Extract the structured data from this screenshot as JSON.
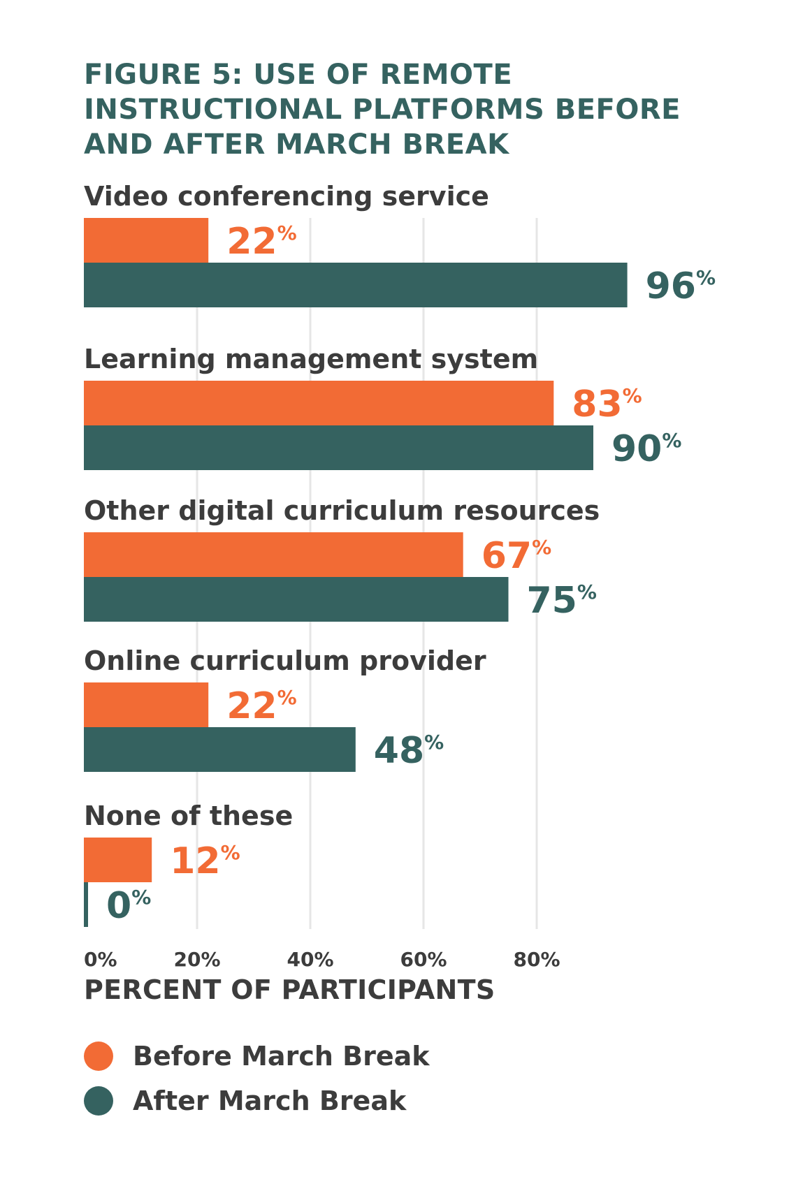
{
  "title_lines": [
    "FIGURE 5: USE OF REMOTE",
    "INSTRUCTIONAL PLATFORMS BEFORE",
    "AND AFTER MARCH BREAK"
  ],
  "colors": {
    "before": "#F26B35",
    "after": "#356260",
    "grid": "#e6e6e6",
    "text": "#3c3c3c",
    "title": "#356260"
  },
  "chart_data": {
    "type": "bar",
    "orientation": "horizontal",
    "categories": [
      "Video conferencing service",
      "Learning management system",
      "Other digital curriculum resources",
      "Online curriculum provider",
      "None of these"
    ],
    "series": [
      {
        "name": "Before March Break",
        "values": [
          22,
          83,
          67,
          22,
          12
        ]
      },
      {
        "name": "After March Break",
        "values": [
          96,
          90,
          75,
          48,
          0
        ]
      }
    ],
    "value_suffix": "%",
    "xlabel": "PERCENT OF PARTICIPANTS",
    "xticks": [
      "0%",
      "20%",
      "40%",
      "60%",
      "80%"
    ],
    "xlim": [
      0,
      100
    ],
    "grid": true,
    "legend_position": "bottom-left"
  }
}
